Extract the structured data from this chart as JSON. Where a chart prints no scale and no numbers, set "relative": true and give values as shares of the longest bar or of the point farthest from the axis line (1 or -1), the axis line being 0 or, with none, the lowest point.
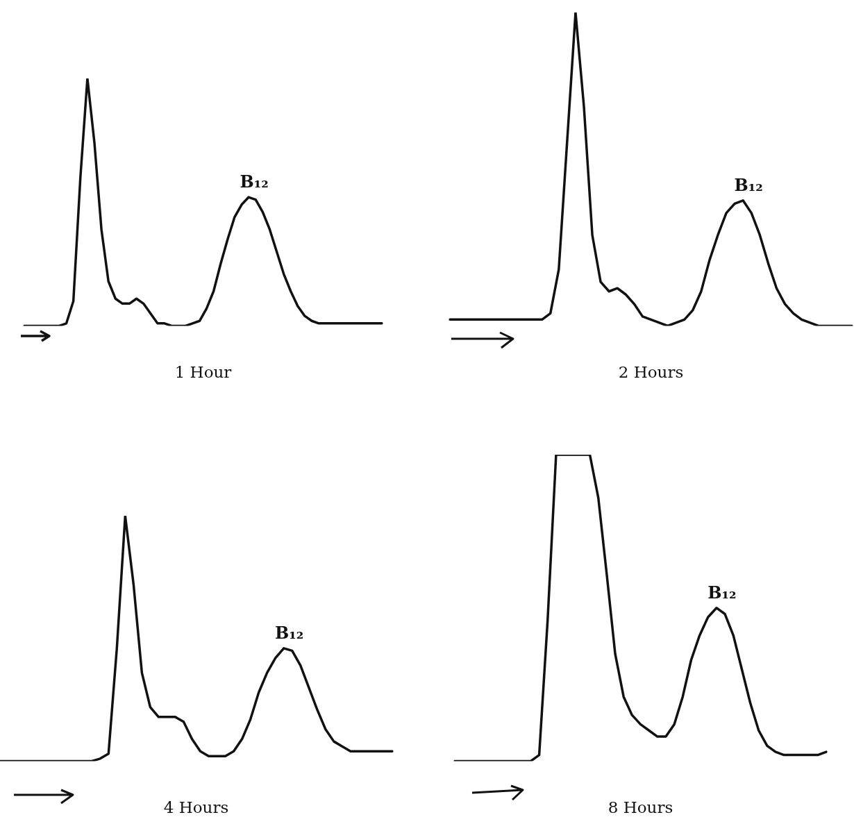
{
  "chart_data": [
    {
      "type": "line",
      "relative": true,
      "title": "1 Hour",
      "tick_labels": false,
      "annotations": [
        "B₁₂"
      ],
      "categories": [
        null,
        null,
        null,
        null,
        null,
        null,
        null,
        null,
        null,
        null,
        null,
        null,
        null,
        null,
        null,
        null,
        null,
        null,
        null,
        null,
        null,
        null,
        null,
        null,
        null,
        null,
        null,
        null,
        null,
        null,
        null,
        null,
        null,
        null,
        null,
        null,
        null,
        null,
        null,
        null,
        null,
        null,
        null,
        null,
        null,
        null,
        null,
        null,
        null,
        null,
        null,
        null
      ],
      "series": [
        {
          "color": "#111111",
          "values": [
            0,
            0,
            0,
            0,
            0,
            0,
            0.01,
            0.1,
            0.6,
            1,
            0.74,
            0.39,
            0.18,
            0.11,
            0.09,
            0.09,
            0.11,
            0.09,
            0.05,
            0.01,
            0.01,
            0,
            0,
            0,
            0.01,
            0.02,
            0.07,
            0.14,
            0.25,
            0.35,
            0.44,
            0.49,
            0.52,
            0.51,
            0.46,
            0.39,
            0.3,
            0.21,
            0.14,
            0.08,
            0.04,
            0.02,
            0.01,
            0.01,
            0.01,
            0.01,
            0.01,
            0.01,
            0.01,
            0.01,
            0.01,
            0.01
          ]
        }
      ]
    },
    {
      "type": "line",
      "relative": true,
      "title": "2 Hours",
      "tick_labels": false,
      "annotations": [
        "B₁₂"
      ],
      "categories": [
        null,
        null,
        null,
        null,
        null,
        null,
        null,
        null,
        null,
        null,
        null,
        null,
        null,
        null,
        null,
        null,
        null,
        null,
        null,
        null,
        null,
        null,
        null,
        null,
        null,
        null,
        null,
        null,
        null,
        null,
        null,
        null,
        null,
        null,
        null,
        null,
        null,
        null,
        null,
        null,
        null,
        null,
        null,
        null,
        null,
        null,
        null,
        null,
        null
      ],
      "series": [
        {
          "color": "#111111",
          "values": [
            0.02,
            0.02,
            0.02,
            0.02,
            0.02,
            0.02,
            0.02,
            0.02,
            0.02,
            0.02,
            0.02,
            0.02,
            0.04,
            0.18,
            0.59,
            1,
            0.7,
            0.29,
            0.14,
            0.11,
            0.12,
            0.1,
            0.07,
            0.03,
            0.02,
            0.01,
            0,
            0.01,
            0.02,
            0.05,
            0.11,
            0.21,
            0.29,
            0.36,
            0.39,
            0.4,
            0.36,
            0.29,
            0.2,
            0.12,
            0.07,
            0.04,
            0.02,
            0.01,
            0,
            0,
            0,
            0,
            0
          ]
        }
      ]
    },
    {
      "type": "line",
      "relative": true,
      "title": "4 Hours",
      "tick_labels": false,
      "annotations": [
        "B₁₂"
      ],
      "categories": [
        null,
        null,
        null,
        null,
        null,
        null,
        null,
        null,
        null,
        null,
        null,
        null,
        null,
        null,
        null,
        null,
        null,
        null,
        null,
        null,
        null,
        null,
        null,
        null,
        null,
        null,
        null,
        null,
        null,
        null,
        null,
        null,
        null,
        null,
        null,
        null,
        null,
        null,
        null,
        null,
        null,
        null,
        null,
        null,
        null,
        null,
        null,
        null
      ],
      "series": [
        {
          "color": "#111111",
          "values": [
            0,
            0,
            0,
            0,
            0,
            0,
            0,
            0,
            0,
            0,
            0,
            0,
            0.01,
            0.03,
            0.46,
            1,
            0.72,
            0.36,
            0.22,
            0.18,
            0.18,
            0.18,
            0.16,
            0.09,
            0.04,
            0.02,
            0.02,
            0.02,
            0.04,
            0.09,
            0.17,
            0.28,
            0.36,
            0.42,
            0.46,
            0.45,
            0.39,
            0.3,
            0.21,
            0.13,
            0.08,
            0.06,
            0.04,
            0.04,
            0.04,
            0.04,
            0.04,
            0.04
          ]
        }
      ]
    },
    {
      "type": "line",
      "relative": true,
      "title": "8 Hours",
      "tick_labels": false,
      "annotations": [
        "B₁₂"
      ],
      "categories": [
        null,
        null,
        null,
        null,
        null,
        null,
        null,
        null,
        null,
        null,
        null,
        null,
        null,
        null,
        null,
        null,
        null,
        null,
        null,
        null,
        null,
        null,
        null,
        null,
        null,
        null,
        null,
        null,
        null,
        null,
        null,
        null,
        null,
        null,
        null,
        null,
        null,
        null,
        null,
        null,
        null,
        null,
        null,
        null,
        null
      ],
      "series": [
        {
          "color": "#111111",
          "values": [
            0,
            0,
            0,
            0,
            0,
            0,
            0,
            0,
            0,
            0,
            0.02,
            0.46,
            1,
            1,
            1,
            1,
            1,
            0.86,
            0.61,
            0.35,
            0.21,
            0.15,
            0.12,
            0.1,
            0.08,
            0.08,
            0.12,
            0.21,
            0.33,
            0.41,
            0.47,
            0.5,
            0.48,
            0.41,
            0.3,
            0.19,
            0.1,
            0.05,
            0.03,
            0.02,
            0.02,
            0.02,
            0.02,
            0.02,
            0.03
          ]
        }
      ]
    }
  ]
}
